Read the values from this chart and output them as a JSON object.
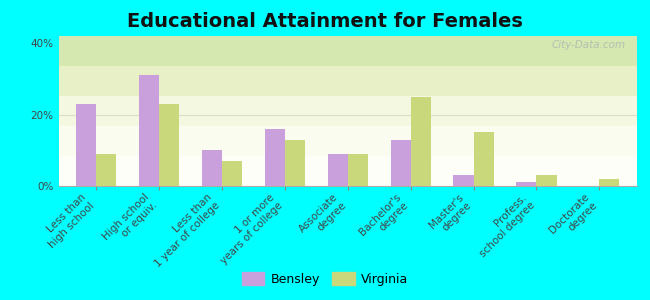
{
  "title": "Educational Attainment for Females",
  "categories": [
    "Less than\nhigh school",
    "High school\nor equiv.",
    "Less than\n1 year of college",
    "1 or more\nyears of college",
    "Associate\ndegree",
    "Bachelor's\ndegree",
    "Master's\ndegree",
    "Profess.\nschool degree",
    "Doctorate\ndegree"
  ],
  "bensley": [
    23,
    31,
    10,
    16,
    9,
    13,
    3,
    1,
    0
  ],
  "virginia": [
    9,
    23,
    7,
    13,
    9,
    25,
    15,
    3,
    2
  ],
  "bensley_color": "#c9a0dc",
  "virginia_color": "#c8d87a",
  "plot_bg_top": "#e8f0c8",
  "plot_bg_bottom": "#f8fce8",
  "background_color": "#00ffff",
  "ylim": [
    0,
    42
  ],
  "yticks": [
    0,
    20,
    40
  ],
  "ytick_labels": [
    "0%",
    "20%",
    "40%"
  ],
  "legend_labels": [
    "Bensley",
    "Virginia"
  ],
  "watermark": "City-Data.com",
  "title_fontsize": 14,
  "tick_fontsize": 7.5,
  "bar_width": 0.32
}
